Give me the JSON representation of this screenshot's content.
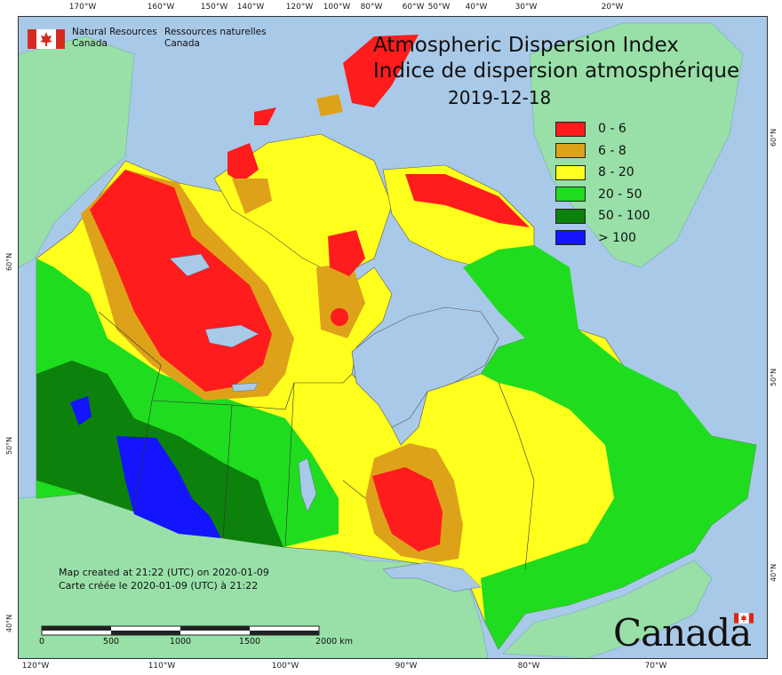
{
  "title": {
    "en": "Atmospheric Dispersion Index",
    "fr": "Indice de dispersion atmosphérique",
    "date": "2019-12-18"
  },
  "agency": {
    "en_line1": "Natural Resources",
    "en_line2": "Canada",
    "fr_line1": "Ressources naturelles",
    "fr_line2": "Canada"
  },
  "legend": [
    {
      "label": "0 - 6",
      "color": "#ff1c1c"
    },
    {
      "label": "6 - 8",
      "color": "#dea21a"
    },
    {
      "label": "8 - 20",
      "color": "#ffff1e"
    },
    {
      "label": "20 - 50",
      "color": "#1fdc1f"
    },
    {
      "label": "50 - 100",
      "color": "#0c820c"
    },
    {
      "label": "> 100",
      "color": "#1414ff"
    }
  ],
  "credits": {
    "en": "Map created at 21:22 (UTC) on 2020-01-09",
    "fr": "Carte créée le 2020-01-09 (UTC) à 21:22"
  },
  "scale": {
    "labels": [
      "0",
      "500",
      "1000",
      "1500",
      "2000 km"
    ]
  },
  "wordmark": "Canada",
  "graticule": {
    "top": [
      "170°W",
      "160°W",
      "150°W",
      "140°W",
      "120°W",
      "100°W",
      "80°W",
      "60°W",
      "50°W",
      "40°W",
      "30°W",
      "20°W"
    ],
    "bottom": [
      "120°W",
      "110°W",
      "100°W",
      "90°W",
      "80°W",
      "70°W"
    ],
    "left": [
      "60°N",
      "50°N",
      "40°N"
    ],
    "right": [
      "60°N",
      "50°N",
      "40°N"
    ]
  },
  "colors": {
    "ocean": "#a9c9e8",
    "foreign_land": "#98e0a8"
  }
}
